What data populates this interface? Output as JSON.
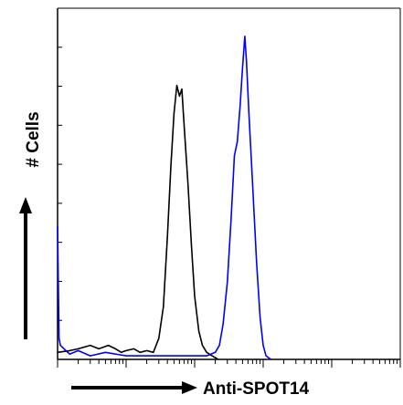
{
  "chart_data": {
    "type": "line",
    "title": "",
    "xlabel": "Anti-SPOT14",
    "ylabel": "# Cells",
    "x_scale": "log",
    "xlim": [
      1,
      100000
    ],
    "ylim": [
      0,
      100
    ],
    "grid": false,
    "legend": "none",
    "series": [
      {
        "color": "#000000",
        "points": [
          [
            1.0,
            2
          ],
          [
            1.5,
            2.5
          ],
          [
            2.0,
            3
          ],
          [
            3.0,
            4
          ],
          [
            4.0,
            3
          ],
          [
            5.5,
            4
          ],
          [
            7.0,
            3
          ],
          [
            8.5,
            2
          ],
          [
            10.0,
            2.5
          ],
          [
            13.0,
            3
          ],
          [
            16.0,
            2
          ],
          [
            20.0,
            2.5
          ],
          [
            25.0,
            2
          ],
          [
            30.0,
            6
          ],
          [
            35.0,
            15
          ],
          [
            40.0,
            35
          ],
          [
            45.0,
            55
          ],
          [
            50.0,
            70
          ],
          [
            55.0,
            78
          ],
          [
            60.0,
            75
          ],
          [
            65.0,
            77
          ],
          [
            70.0,
            67
          ],
          [
            80.0,
            50
          ],
          [
            90.0,
            32
          ],
          [
            100.0,
            18
          ],
          [
            115.0,
            8
          ],
          [
            130.0,
            4
          ],
          [
            150.0,
            2
          ],
          [
            180.0,
            1
          ],
          [
            220.0,
            0
          ]
        ]
      },
      {
        "color": "#0000ff",
        "points": [
          [
            1.0,
            38
          ],
          [
            1.05,
            6
          ],
          [
            1.1,
            4
          ],
          [
            1.5,
            1.5
          ],
          [
            2.0,
            2.5
          ],
          [
            3.0,
            1
          ],
          [
            5.0,
            2
          ],
          [
            10.0,
            1
          ],
          [
            50.0,
            1
          ],
          [
            150.0,
            1
          ],
          [
            200.0,
            2
          ],
          [
            230.0,
            4
          ],
          [
            260.0,
            10
          ],
          [
            300.0,
            22
          ],
          [
            340.0,
            40
          ],
          [
            380.0,
            58
          ],
          [
            420.0,
            62
          ],
          [
            460.0,
            72
          ],
          [
            500.0,
            83
          ],
          [
            540.0,
            92
          ],
          [
            570.0,
            85
          ],
          [
            620.0,
            70
          ],
          [
            700.0,
            50
          ],
          [
            800.0,
            28
          ],
          [
            900.0,
            12
          ],
          [
            1000.0,
            4
          ],
          [
            1100.0,
            1
          ],
          [
            1300.0,
            0
          ]
        ]
      }
    ]
  }
}
